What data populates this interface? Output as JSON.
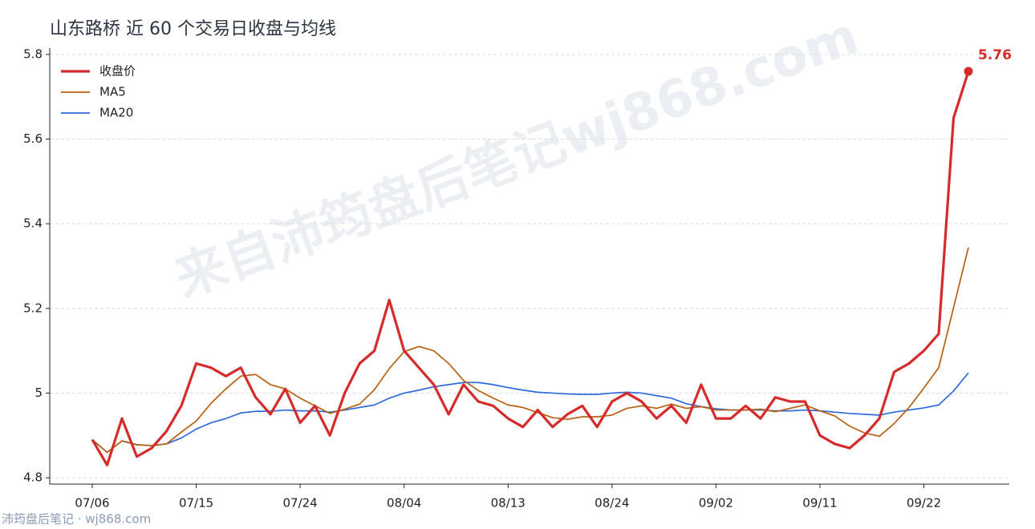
{
  "chart_data": {
    "type": "line",
    "title": "山东路桥 近 60 个交易日收盘与均线",
    "watermark": "来自沛筠盘后笔记wj868.com",
    "footer": "沛筠盘后笔记 · wj868.com",
    "categories": [
      "07/06",
      null,
      null,
      null,
      null,
      null,
      null,
      "07/15",
      null,
      null,
      null,
      null,
      null,
      null,
      "07/24",
      null,
      null,
      null,
      null,
      null,
      null,
      "08/04",
      null,
      null,
      null,
      null,
      null,
      null,
      "08/13",
      null,
      null,
      null,
      null,
      null,
      null,
      "08/24",
      null,
      null,
      null,
      null,
      null,
      null,
      "09/02",
      null,
      null,
      null,
      null,
      null,
      null,
      "09/11",
      null,
      null,
      null,
      null,
      null,
      null,
      "09/22",
      null,
      null,
      null
    ],
    "series": [
      {
        "name": "收盘价",
        "color": "#d62b2b",
        "values": [
          4.89,
          4.83,
          4.94,
          4.85,
          4.87,
          4.91,
          4.97,
          5.07,
          5.06,
          5.04,
          5.06,
          4.99,
          4.95,
          5.01,
          4.93,
          4.97,
          4.9,
          5.0,
          5.07,
          5.1,
          5.22,
          5.1,
          5.06,
          5.02,
          4.95,
          5.02,
          4.98,
          4.97,
          4.94,
          4.92,
          4.96,
          4.92,
          4.95,
          4.97,
          4.92,
          4.98,
          5.0,
          4.98,
          4.94,
          4.97,
          4.93,
          5.02,
          4.94,
          4.94,
          4.97,
          4.94,
          4.99,
          4.98,
          4.98,
          4.9,
          4.88,
          4.87,
          4.9,
          4.94,
          5.05,
          5.07,
          5.1,
          5.14,
          5.65,
          5.76
        ]
      },
      {
        "name": "MA5",
        "color": "#b8600f",
        "values": [
          4.89,
          4.86,
          4.887,
          4.878,
          4.876,
          4.88,
          4.908,
          4.934,
          4.976,
          5.01,
          5.04,
          5.044,
          5.02,
          5.01,
          4.988,
          4.97,
          4.952,
          4.962,
          4.974,
          5.008,
          5.058,
          5.098,
          5.11,
          5.1,
          5.07,
          5.03,
          5.006,
          4.988,
          4.972,
          4.966,
          4.954,
          4.942,
          4.938,
          4.944,
          4.944,
          4.948,
          4.964,
          4.97,
          4.964,
          4.974,
          4.964,
          4.968,
          4.96,
          4.96,
          4.96,
          4.962,
          4.956,
          4.964,
          4.972,
          4.958,
          4.946,
          4.922,
          4.906,
          4.898,
          4.928,
          4.966,
          5.012,
          5.06,
          5.202,
          5.344
        ]
      },
      {
        "name": "MA20",
        "color": "#2e6bdc",
        "values": [
          4.89,
          4.86,
          4.887,
          4.878,
          4.876,
          4.88,
          4.894,
          4.915,
          4.93,
          4.94,
          4.953,
          4.957,
          4.957,
          4.96,
          4.958,
          4.958,
          4.955,
          4.96,
          4.966,
          4.972,
          4.988,
          5.0,
          5.007,
          5.015,
          5.02,
          5.025,
          5.025,
          5.02,
          5.013,
          5.007,
          5.002,
          5.0,
          4.998,
          4.997,
          4.997,
          5.0,
          5.002,
          5.0,
          4.994,
          4.988,
          4.975,
          4.968,
          4.963,
          4.96,
          4.96,
          4.96,
          4.958,
          4.958,
          4.96,
          4.958,
          4.955,
          4.952,
          4.95,
          4.948,
          4.955,
          4.96,
          4.965,
          4.972,
          5.005,
          5.048
        ]
      }
    ],
    "ylim": [
      4.785,
      5.815
    ],
    "yticks": [
      4.8,
      5.0,
      5.2,
      5.4,
      5.6,
      5.8
    ],
    "grid": true,
    "legend": "upper-left"
  }
}
